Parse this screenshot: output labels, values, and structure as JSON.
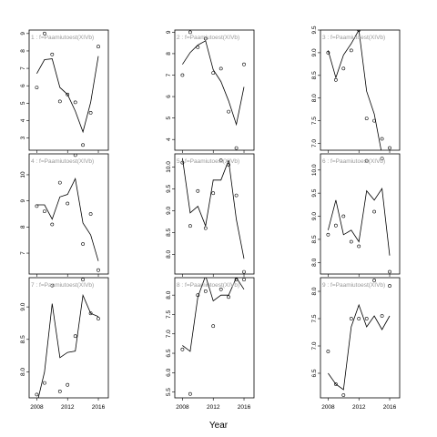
{
  "chart_data": {
    "type": "line",
    "xlabel": "Year",
    "ylabel": "",
    "grid": false,
    "legend": "none",
    "x_ticks": [
      2008,
      2012,
      2016
    ],
    "panels": [
      {
        "label": "1 : f=Paamiutoest(XIVb)",
        "xlim": [
          2007,
          2017.3
        ],
        "ylim": [
          2.3,
          9.2
        ],
        "yticks": [
          3,
          4,
          5,
          6,
          7,
          8,
          9
        ],
        "points": [
          [
            2008,
            5.9
          ],
          [
            2009,
            9.0
          ],
          [
            2010,
            7.8
          ],
          [
            2011,
            5.1
          ],
          [
            2012,
            5.5
          ],
          [
            2013,
            5.05
          ],
          [
            2014,
            2.6
          ],
          [
            2015,
            4.45
          ],
          [
            2016,
            8.25
          ]
        ],
        "line": [
          [
            2008,
            6.7
          ],
          [
            2009,
            7.5
          ],
          [
            2010,
            7.55
          ],
          [
            2011,
            5.9
          ],
          [
            2012,
            5.5
          ],
          [
            2013,
            4.55
          ],
          [
            2014,
            3.35
          ],
          [
            2015,
            5.05
          ],
          [
            2016,
            7.7
          ]
        ]
      },
      {
        "label": "4 : f=Paamiutoest(XIVb)",
        "xlim": [
          2007,
          2017.3
        ],
        "ylim": [
          6.2,
          10.8
        ],
        "yticks": [
          7,
          8,
          9,
          10
        ],
        "points": [
          [
            2008,
            8.8
          ],
          [
            2009,
            8.6
          ],
          [
            2010,
            8.1
          ],
          [
            2011,
            9.7
          ],
          [
            2012,
            8.9
          ],
          [
            2013,
            10.75
          ],
          [
            2014,
            7.35
          ],
          [
            2015,
            8.5
          ],
          [
            2016,
            6.35
          ]
        ],
        "line": [
          [
            2008,
            8.85
          ],
          [
            2009,
            8.85
          ],
          [
            2010,
            8.3
          ],
          [
            2011,
            9.15
          ],
          [
            2012,
            9.25
          ],
          [
            2013,
            9.85
          ],
          [
            2014,
            8.15
          ],
          [
            2015,
            7.7
          ],
          [
            2016,
            6.7
          ]
        ]
      },
      {
        "label": "7 : f=Paamiutoest(XIVb)",
        "xlim": [
          2007,
          2017.3
        ],
        "ylim": [
          7.6,
          9.45
        ],
        "yticks": [
          8.0,
          8.5,
          9.0
        ],
        "points": [
          [
            2008,
            7.65
          ],
          [
            2009,
            7.83
          ],
          [
            2010,
            9.33
          ],
          [
            2011,
            7.7
          ],
          [
            2012,
            7.8
          ],
          [
            2013,
            8.55
          ],
          [
            2014,
            9.42
          ],
          [
            2015,
            8.9
          ],
          [
            2016,
            8.82
          ]
        ],
        "line": [
          [
            2008,
            7.5
          ],
          [
            2009,
            8.0
          ],
          [
            2010,
            9.05
          ],
          [
            2011,
            8.22
          ],
          [
            2012,
            8.3
          ],
          [
            2013,
            8.32
          ],
          [
            2014,
            9.18
          ],
          [
            2015,
            8.9
          ],
          [
            2016,
            8.85
          ]
        ]
      },
      {
        "label": "2 : f=Paamiutoest(XIVb)",
        "xlim": [
          2007,
          2017.3
        ],
        "ylim": [
          3.5,
          9.1
        ],
        "yticks": [
          4,
          5,
          6,
          7,
          8,
          9
        ],
        "points": [
          [
            2008,
            7.0
          ],
          [
            2009,
            9.0
          ],
          [
            2010,
            8.3
          ],
          [
            2011,
            8.7
          ],
          [
            2012,
            7.1
          ],
          [
            2013,
            7.3
          ],
          [
            2014,
            5.3
          ],
          [
            2015,
            3.6
          ],
          [
            2016,
            7.5
          ]
        ],
        "line": [
          [
            2008,
            7.5
          ],
          [
            2009,
            8.05
          ],
          [
            2010,
            8.4
          ],
          [
            2011,
            8.6
          ],
          [
            2012,
            7.25
          ],
          [
            2013,
            6.7
          ],
          [
            2014,
            5.8
          ],
          [
            2015,
            4.7
          ],
          [
            2016,
            6.45
          ]
        ]
      },
      {
        "label": "5 : f=Paamiutoest(XIVb)",
        "xlim": [
          2007,
          2017.3
        ],
        "ylim": [
          7.55,
          10.3
        ],
        "yticks": [
          8.0,
          8.5,
          9.0,
          9.5,
          10.0
        ],
        "points": [
          [
            2008,
            10.1
          ],
          [
            2009,
            8.65
          ],
          [
            2010,
            9.45
          ],
          [
            2011,
            8.6
          ],
          [
            2012,
            9.4
          ],
          [
            2013,
            10.15
          ],
          [
            2014,
            10.05
          ],
          [
            2015,
            9.35
          ],
          [
            2016,
            7.6
          ]
        ],
        "line": [
          [
            2008,
            10.2
          ],
          [
            2009,
            8.95
          ],
          [
            2010,
            9.1
          ],
          [
            2011,
            8.65
          ],
          [
            2012,
            9.7
          ],
          [
            2013,
            9.7
          ],
          [
            2014,
            10.15
          ],
          [
            2015,
            8.8
          ],
          [
            2016,
            7.9
          ]
        ]
      },
      {
        "label": "8 : f=Paamiutoest(XIVb)",
        "xlim": [
          2007,
          2017.3
        ],
        "ylim": [
          5.35,
          8.45
        ],
        "yticks": [
          5.5,
          6.0,
          6.5,
          7.0,
          7.5,
          8.0,
          8.5
        ],
        "points": [
          [
            2008,
            6.6
          ],
          [
            2009,
            5.45
          ],
          [
            2010,
            8.0
          ],
          [
            2011,
            8.1
          ],
          [
            2012,
            7.2
          ],
          [
            2013,
            8.15
          ],
          [
            2014,
            7.95
          ],
          [
            2015,
            8.4
          ],
          [
            2016,
            8.4
          ]
        ],
        "line": [
          [
            2008,
            6.7
          ],
          [
            2009,
            6.55
          ],
          [
            2010,
            7.95
          ],
          [
            2011,
            8.5
          ],
          [
            2012,
            7.85
          ],
          [
            2013,
            8.0
          ],
          [
            2014,
            8.0
          ],
          [
            2015,
            8.45
          ],
          [
            2016,
            8.15
          ]
        ]
      },
      {
        "label": "3 : f=Paamiutoest(XIVb)",
        "xlim": [
          2007,
          2017.3
        ],
        "ylim": [
          6.85,
          9.5
        ],
        "yticks": [
          7.0,
          7.5,
          8.0,
          8.5,
          9.0,
          9.5
        ],
        "points": [
          [
            2008,
            9.0
          ],
          [
            2009,
            8.4
          ],
          [
            2010,
            8.65
          ],
          [
            2011,
            9.05
          ],
          [
            2012,
            9.5
          ],
          [
            2013,
            7.55
          ],
          [
            2014,
            7.5
          ],
          [
            2015,
            7.1
          ],
          [
            2016,
            6.9
          ]
        ],
        "line": [
          [
            2008,
            9.05
          ],
          [
            2009,
            8.45
          ],
          [
            2010,
            8.95
          ],
          [
            2011,
            9.2
          ],
          [
            2012,
            9.5
          ],
          [
            2013,
            8.15
          ],
          [
            2014,
            7.65
          ],
          [
            2015,
            6.75
          ],
          [
            2016,
            6.55
          ]
        ]
      },
      {
        "label": "6 : f=Paamiutoest(XIVb)",
        "xlim": [
          2007,
          2017.3
        ],
        "ylim": [
          7.75,
          10.35
        ],
        "yticks": [
          8.0,
          8.5,
          9.0,
          9.5,
          10.0
        ],
        "points": [
          [
            2008,
            8.6
          ],
          [
            2009,
            8.8
          ],
          [
            2010,
            9.0
          ],
          [
            2011,
            8.45
          ],
          [
            2012,
            8.35
          ],
          [
            2013,
            10.2
          ],
          [
            2014,
            9.1
          ],
          [
            2015,
            10.25
          ],
          [
            2016,
            7.8
          ]
        ],
        "line": [
          [
            2008,
            8.7
          ],
          [
            2009,
            9.35
          ],
          [
            2010,
            8.6
          ],
          [
            2011,
            8.7
          ],
          [
            2012,
            8.45
          ],
          [
            2013,
            9.55
          ],
          [
            2014,
            9.35
          ],
          [
            2015,
            9.6
          ],
          [
            2016,
            8.15
          ]
        ]
      },
      {
        "label": "9 : f=Paamiutoest(XIVb)",
        "xlim": [
          2007,
          2017.3
        ],
        "ylim": [
          6.05,
          8.25
        ],
        "yticks": [
          6.5,
          7.0,
          7.5,
          8.0
        ],
        "points": [
          [
            2008,
            6.9
          ],
          [
            2009,
            6.3
          ],
          [
            2010,
            6.1
          ],
          [
            2011,
            7.5
          ],
          [
            2012,
            7.5
          ],
          [
            2013,
            7.5
          ],
          [
            2014,
            8.2
          ],
          [
            2015,
            7.55
          ],
          [
            2016,
            8.1
          ]
        ],
        "line": [
          [
            2008,
            6.5
          ],
          [
            2009,
            6.3
          ],
          [
            2010,
            6.2
          ],
          [
            2011,
            7.35
          ],
          [
            2012,
            7.75
          ],
          [
            2013,
            7.35
          ],
          [
            2014,
            7.55
          ],
          [
            2015,
            7.3
          ],
          [
            2016,
            7.55
          ]
        ]
      }
    ]
  }
}
